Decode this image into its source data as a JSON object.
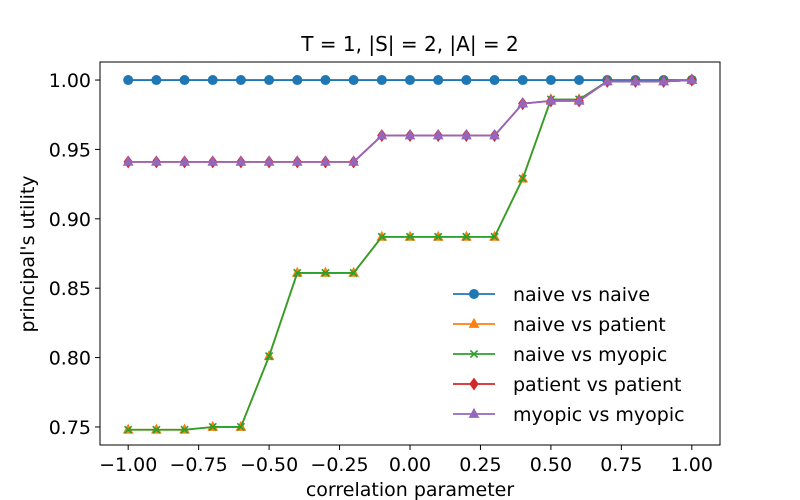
{
  "chart_data": {
    "type": "line",
    "title": "T = 1, |S| = 2, |A| = 2",
    "xlabel": "correlation parameter",
    "ylabel": "principal's utility",
    "xlim": [
      -1.1,
      1.1
    ],
    "ylim": [
      0.737,
      1.013
    ],
    "xticks": [
      -1.0,
      -0.75,
      -0.5,
      -0.25,
      0.0,
      0.25,
      0.5,
      0.75,
      1.0
    ],
    "xtick_labels": [
      "−1.00",
      "−0.75",
      "−0.50",
      "−0.25",
      "0.00",
      "0.25",
      "0.50",
      "0.75",
      "1.00"
    ],
    "yticks": [
      0.75,
      0.8,
      0.85,
      0.9,
      0.95,
      1.0
    ],
    "ytick_labels": [
      "0.75",
      "0.80",
      "0.85",
      "0.90",
      "0.95",
      "1.00"
    ],
    "grid": false,
    "legend_position": "lower-right",
    "x": [
      -1.0,
      -0.9,
      -0.8,
      -0.7,
      -0.6,
      -0.5,
      -0.4,
      -0.3,
      -0.2,
      -0.1,
      0.0,
      0.1,
      0.2,
      0.3,
      0.4,
      0.5,
      0.6,
      0.7,
      0.8,
      0.9,
      1.0
    ],
    "series": [
      {
        "name": "naive vs naive",
        "color": "#1f77b4",
        "marker": "circle",
        "values": [
          1.0,
          1.0,
          1.0,
          1.0,
          1.0,
          1.0,
          1.0,
          1.0,
          1.0,
          1.0,
          1.0,
          1.0,
          1.0,
          1.0,
          1.0,
          1.0,
          1.0,
          1.0,
          1.0,
          1.0,
          1.0
        ]
      },
      {
        "name": "naive vs patient",
        "color": "#ff7f0e",
        "marker": "triangle-up",
        "values": [
          0.748,
          0.748,
          0.748,
          0.75,
          0.75,
          0.801,
          0.861,
          0.861,
          0.861,
          0.887,
          0.887,
          0.887,
          0.887,
          0.887,
          0.929,
          0.986,
          0.986,
          0.999,
          0.999,
          0.999,
          1.0
        ]
      },
      {
        "name": "naive vs myopic",
        "color": "#2ca02c",
        "marker": "x",
        "values": [
          0.748,
          0.748,
          0.748,
          0.75,
          0.75,
          0.801,
          0.861,
          0.861,
          0.861,
          0.887,
          0.887,
          0.887,
          0.887,
          0.887,
          0.929,
          0.986,
          0.986,
          0.999,
          0.999,
          0.999,
          1.0
        ]
      },
      {
        "name": "patient vs patient",
        "color": "#d62728",
        "marker": "diamond",
        "values": [
          0.941,
          0.941,
          0.941,
          0.941,
          0.941,
          0.941,
          0.941,
          0.941,
          0.941,
          0.96,
          0.96,
          0.96,
          0.96,
          0.96,
          0.983,
          0.985,
          0.985,
          0.999,
          0.999,
          0.999,
          1.0
        ]
      },
      {
        "name": "myopic vs myopic",
        "color": "#9467bd",
        "marker": "triangle-up",
        "values": [
          0.941,
          0.941,
          0.941,
          0.941,
          0.941,
          0.941,
          0.941,
          0.941,
          0.941,
          0.96,
          0.96,
          0.96,
          0.96,
          0.96,
          0.983,
          0.985,
          0.985,
          0.999,
          0.999,
          0.999,
          1.0
        ]
      }
    ]
  }
}
